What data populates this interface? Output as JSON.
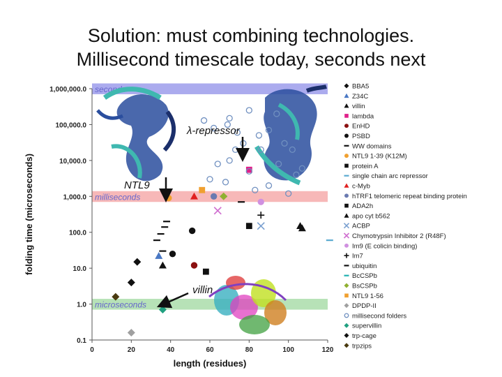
{
  "title": {
    "line1": "Solution: must combining technologies.",
    "line2": "Millisecond timescale today, seconds next"
  },
  "chart_data": {
    "type": "scatter",
    "xlabel": "length (residues)",
    "ylabel": "folding time (microseconds)",
    "xlim": [
      0,
      120
    ],
    "ylim": [
      0.1,
      1000000
    ],
    "yscale": "log",
    "x_ticks": [
      "0",
      "20",
      "40",
      "60",
      "80",
      "100",
      "120"
    ],
    "y_ticks": [
      "1,000,000.0",
      "100,000.0",
      "10,000.0",
      "1,000.0",
      "100.0",
      "10.0",
      "1.0",
      "0.1"
    ],
    "bands": [
      {
        "label": "seconds",
        "y_range": [
          700000,
          1400000
        ],
        "color": "#8f8fe8"
      },
      {
        "label": "milliseconds",
        "y_range": [
          700,
          1400
        ],
        "color": "#f4a0a0"
      },
      {
        "label": "microseconds",
        "y_range": [
          0.7,
          1.4
        ],
        "color": "#9fd89f"
      }
    ],
    "annotations": [
      {
        "text": "λ-repressor",
        "x": 80,
        "y": 15000
      },
      {
        "text": "NTL9",
        "x": 37,
        "y": 2000
      },
      {
        "text": "villin",
        "x": 36,
        "y": 1.2
      }
    ],
    "series": [
      {
        "name": "BBA5",
        "marker": "diamond",
        "color": "#111111",
        "points": [
          [
            23,
            15
          ]
        ]
      },
      {
        "name": "Z34C",
        "marker": "triangle",
        "color": "#4a78c4",
        "points": [
          [
            34,
            22
          ]
        ]
      },
      {
        "name": "villin",
        "marker": "triangle",
        "color": "#111111",
        "points": [
          [
            36,
            12
          ],
          [
            107,
            130
          ]
        ]
      },
      {
        "name": "lambda",
        "marker": "square",
        "color": "#e0208a",
        "points": [
          [
            80,
            5500
          ]
        ]
      },
      {
        "name": "EnHD",
        "marker": "circle",
        "color": "#8b1010",
        "points": [
          [
            52,
            12
          ]
        ]
      },
      {
        "name": "PSBD",
        "marker": "circle",
        "color": "#111111",
        "points": [
          [
            41,
            25
          ],
          [
            51,
            110
          ]
        ]
      },
      {
        "name": "WW domains",
        "marker": "dash",
        "color": "#111111",
        "points": [
          [
            33,
            60
          ],
          [
            35,
            90
          ],
          [
            37,
            140
          ],
          [
            38,
            200
          ],
          [
            36,
            30
          ]
        ]
      },
      {
        "name": "NTL9 1-39  (K12M)",
        "marker": "circle",
        "color": "#f0a030",
        "points": [
          [
            39,
            900
          ]
        ]
      },
      {
        "name": "protein A",
        "marker": "square",
        "color": "#111111",
        "points": [
          [
            58,
            8
          ]
        ]
      },
      {
        "name": "single chain arc repressor",
        "marker": "dash",
        "color": "#5aaad0",
        "points": [
          [
            121,
            60
          ]
        ]
      },
      {
        "name": "c-Myb",
        "marker": "triangle",
        "color": "#e02020",
        "points": [
          [
            52,
            1000
          ]
        ]
      },
      {
        "name": "hTRF1 telomeric repeat binding protein",
        "marker": "circle",
        "color": "#6a7ab0",
        "points": [
          [
            62,
            1000
          ]
        ]
      },
      {
        "name": "ADA2h",
        "marker": "square",
        "color": "#111111",
        "points": [
          [
            80,
            150
          ]
        ]
      },
      {
        "name": "apo cyt b562",
        "marker": "triangle",
        "color": "#111111",
        "points": [
          [
            106,
            150
          ]
        ]
      },
      {
        "name": "ACBP",
        "marker": "x",
        "color": "#7aa0d0",
        "points": [
          [
            86,
            150
          ]
        ]
      },
      {
        "name": "Chymotrypsin Inhibitor 2 (R48F)",
        "marker": "x",
        "color": "#d070d0",
        "points": [
          [
            64,
            400
          ]
        ]
      },
      {
        "name": "Im9 (E colicin binding)",
        "marker": "circle",
        "color": "#d090e0",
        "points": [
          [
            86,
            700
          ]
        ]
      },
      {
        "name": "Im7",
        "marker": "plus",
        "color": "#111111",
        "points": [
          [
            86,
            300
          ]
        ]
      },
      {
        "name": "ubiquitin",
        "marker": "dash",
        "color": "#111111",
        "points": [
          [
            76,
            700
          ]
        ]
      },
      {
        "name": "BcCSPb",
        "marker": "dash",
        "color": "#20b0b0",
        "points": [
          [
            67,
            1000
          ]
        ]
      },
      {
        "name": "BsCSPb",
        "marker": "diamond",
        "color": "#90b030",
        "points": [
          [
            67,
            1000
          ]
        ]
      },
      {
        "name": "NTL9 1-56",
        "marker": "square",
        "color": "#f0a030",
        "points": [
          [
            56,
            1500
          ]
        ]
      },
      {
        "name": "DPDP-II",
        "marker": "diamond",
        "color": "#a0a0a0",
        "points": [
          [
            20,
            0.16
          ]
        ]
      },
      {
        "name": "millisecond folders",
        "marker": "open-circle",
        "color": "#7090c0",
        "points": [
          [
            57,
            130000
          ],
          [
            62,
            80000
          ],
          [
            69,
            100000
          ],
          [
            74,
            60000
          ],
          [
            70,
            150000
          ],
          [
            80,
            250000
          ],
          [
            85,
            50000
          ],
          [
            90,
            70000
          ],
          [
            73,
            20000
          ],
          [
            64,
            8000
          ],
          [
            60,
            3000
          ],
          [
            68,
            2500
          ],
          [
            80,
            5000
          ],
          [
            90,
            2000
          ],
          [
            95,
            8000
          ],
          [
            102,
            20000
          ],
          [
            104,
            4000
          ],
          [
            98,
            30000
          ],
          [
            86,
            20000
          ],
          [
            70,
            10000
          ],
          [
            83,
            1500
          ],
          [
            100,
            1200
          ],
          [
            107,
            6000
          ],
          [
            94,
            200000
          ],
          [
            77,
            30000
          ]
        ]
      },
      {
        "name": "supervillin",
        "marker": "diamond",
        "color": "#20a080",
        "points": [
          [
            36,
            0.7
          ]
        ]
      },
      {
        "name": "trp-cage",
        "marker": "diamond",
        "color": "#111111",
        "points": [
          [
            20,
            4
          ]
        ]
      },
      {
        "name": "trpzips",
        "marker": "diamond",
        "color": "#4a3a10",
        "points": [
          [
            12,
            1.6
          ]
        ]
      }
    ]
  }
}
